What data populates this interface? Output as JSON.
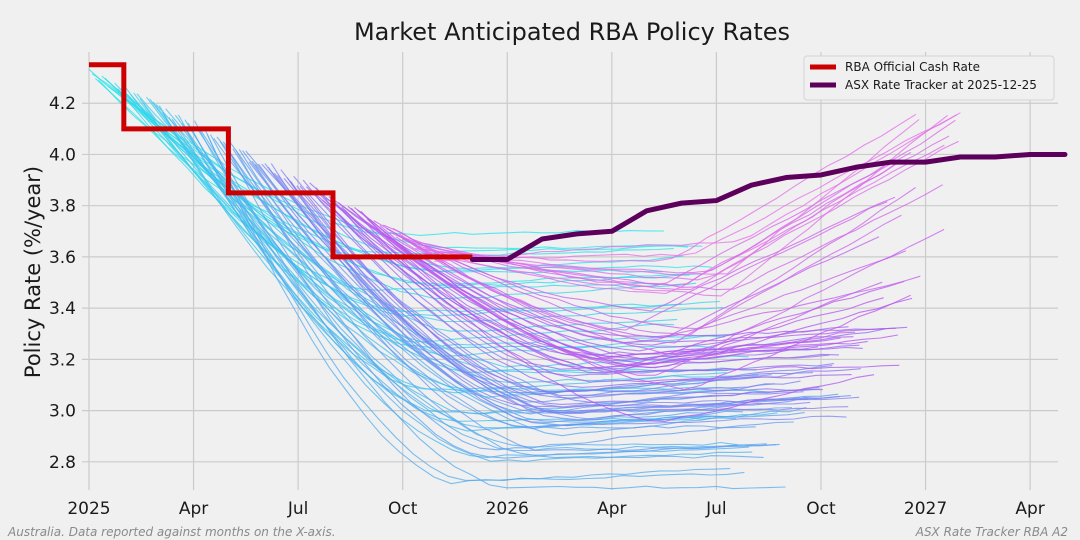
{
  "chart_data": {
    "type": "line",
    "title": "Market Anticipated RBA Policy Rates",
    "xlabel": "",
    "ylabel": "Policy Rate (%/year)",
    "x_units": "months since Jan 2025",
    "xlim": [
      -0.2,
      27.8
    ],
    "ylim": [
      2.69,
      4.4
    ],
    "x_ticks": [
      {
        "x": 0,
        "label": "2025"
      },
      {
        "x": 3,
        "label": "Apr"
      },
      {
        "x": 6,
        "label": "Jul"
      },
      {
        "x": 9,
        "label": "Oct"
      },
      {
        "x": 12,
        "label": "2026"
      },
      {
        "x": 15,
        "label": "Apr"
      },
      {
        "x": 18,
        "label": "Jul"
      },
      {
        "x": 21,
        "label": "Oct"
      },
      {
        "x": 24,
        "label": "2027"
      },
      {
        "x": 27,
        "label": "Apr"
      }
    ],
    "y_ticks": [
      2.8,
      3.0,
      3.2,
      3.4,
      3.6,
      3.8,
      4.0,
      4.2
    ],
    "grid": true,
    "legend_position": "top-right",
    "legend": [
      {
        "label": "RBA Official Cash Rate",
        "color": "#cc0000"
      },
      {
        "label": "ASX Rate Tracker at 2025-12-25",
        "color": "#5c005c"
      }
    ],
    "official_cash_rate": {
      "name": "RBA Official Cash Rate",
      "color": "#cc0000",
      "steps": [
        {
          "x": 0,
          "y": 4.35
        },
        {
          "x": 1,
          "y": 4.1
        },
        {
          "x": 4,
          "y": 3.85
        },
        {
          "x": 7,
          "y": 3.6
        },
        {
          "x": 11,
          "y": 3.6
        }
      ]
    },
    "latest_tracker": {
      "name": "ASX Rate Tracker at 2025-12-25",
      "color": "#5c005c",
      "x": [
        11,
        12,
        13,
        14,
        15,
        16,
        17,
        18,
        19,
        20,
        21,
        22,
        23,
        24,
        25,
        26,
        27,
        28
      ],
      "y": [
        3.59,
        3.59,
        3.67,
        3.69,
        3.7,
        3.78,
        3.81,
        3.82,
        3.88,
        3.91,
        3.92,
        3.95,
        3.97,
        3.97,
        3.99,
        3.99,
        4.0,
        4.0
      ]
    },
    "historical_trackers": {
      "description": "Past ASX Rate Tracker curves, one per daily snapshot; colour shifts cyan -> blue -> magenta with snapshot date",
      "count": 110,
      "endpoint_range": [
        2.7,
        4.18
      ]
    },
    "footnote_left": "Australia.  Data reported against months on the X-axis.",
    "footnote_right": "ASX Rate Tracker RBA A2"
  }
}
